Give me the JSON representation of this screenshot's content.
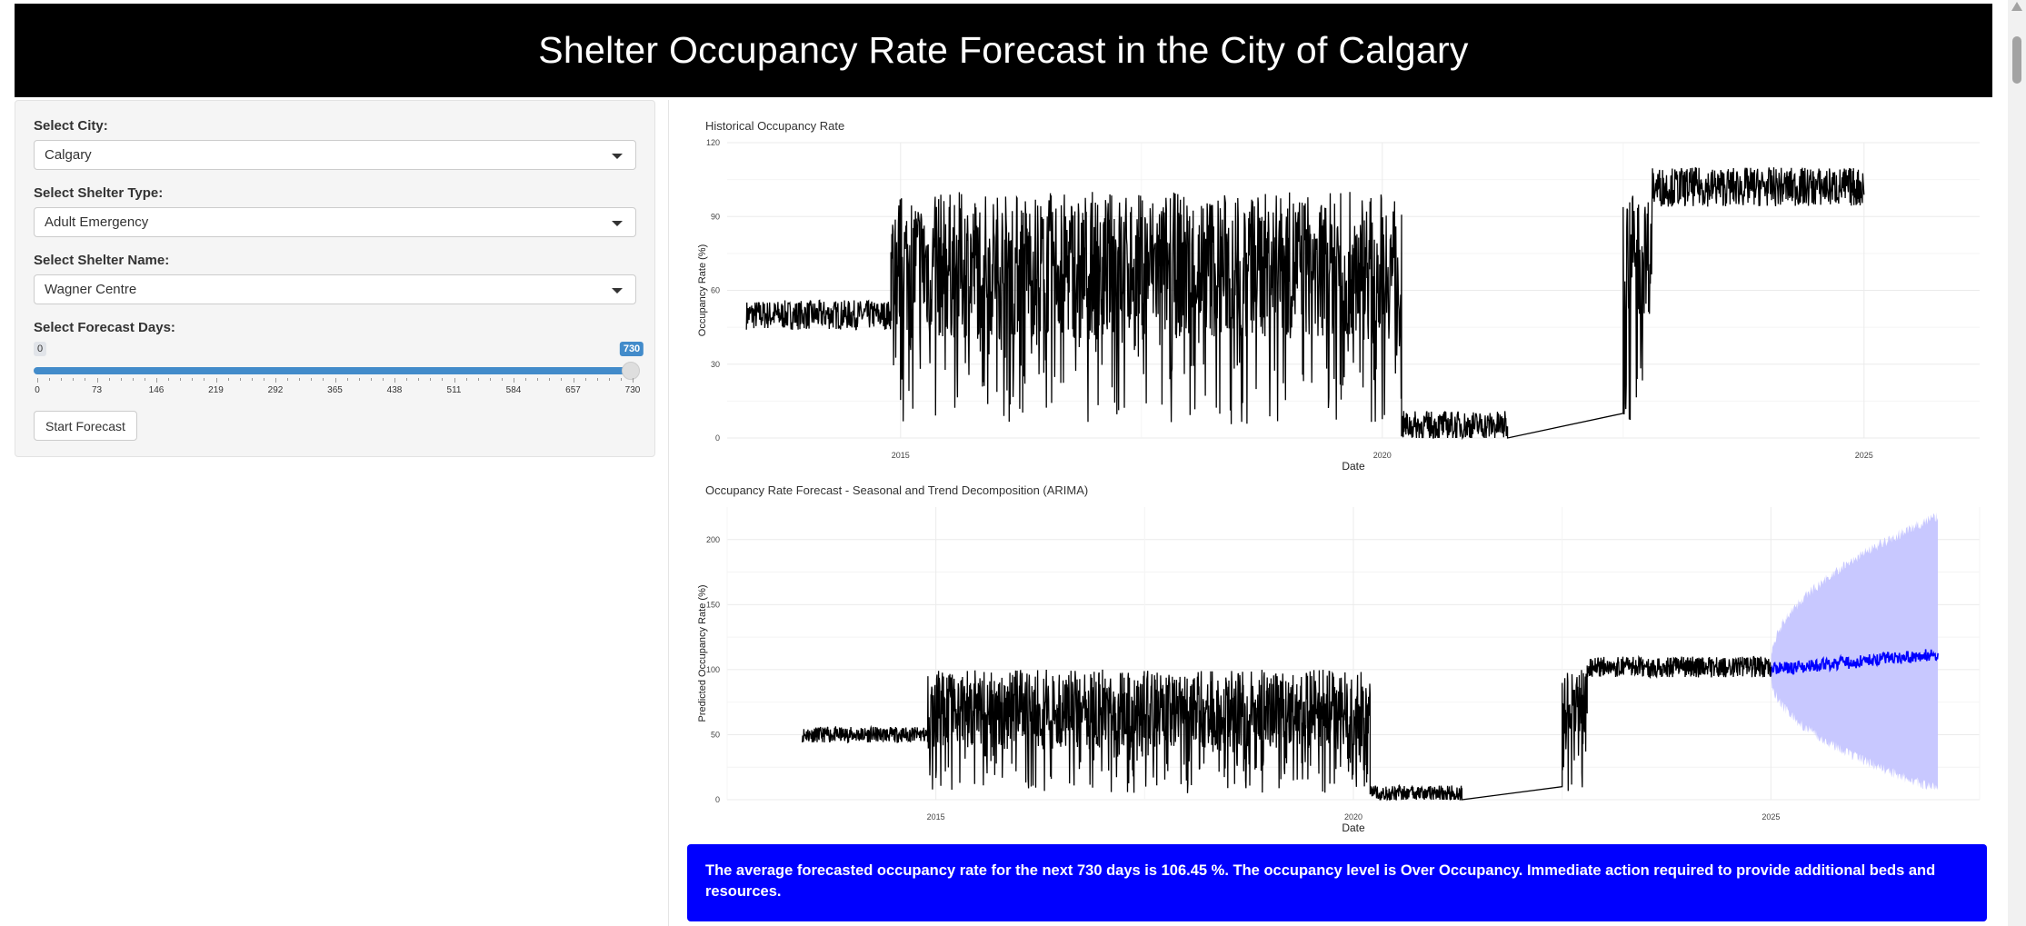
{
  "header": {
    "title": "Shelter Occupancy Rate Forecast in the City of Calgary"
  },
  "sidebar": {
    "city_label": "Select City:",
    "city_value": "Calgary",
    "type_label": "Select Shelter Type:",
    "type_value": "Adult Emergency",
    "name_label": "Select Shelter Name:",
    "name_value": "Wagner Centre",
    "days_label": "Select Forecast Days:",
    "slider": {
      "min": 0,
      "max": 730,
      "value": 730,
      "min_label": "0",
      "max_label": "730",
      "tick_labels": [
        "0",
        "73",
        "146",
        "219",
        "292",
        "365",
        "438",
        "511",
        "584",
        "657",
        "730"
      ]
    },
    "start_button": "Start Forecast"
  },
  "chart_data": [
    {
      "type": "line",
      "title": "Historical Occupancy Rate",
      "xlabel": "Date",
      "ylabel": "Occupancy Rate (%)",
      "xlim": [
        2013.2,
        2026.2
      ],
      "ylim": [
        0,
        120
      ],
      "x_ticks": [
        "2015",
        "2020",
        "2025"
      ],
      "y_ticks": [
        "0",
        "30",
        "60",
        "90",
        "120"
      ],
      "grid": true,
      "series": [
        {
          "color": "#000000",
          "segments": [
            {
              "x0": 2013.4,
              "x1": 2014.9,
              "base": 50,
              "amp": 6
            },
            {
              "x0": 2014.9,
              "x1": 2020.2,
              "base": 70,
              "amp": 30
            },
            {
              "x0": 2020.2,
              "x1": 2021.3,
              "base": 5,
              "amp": 6
            },
            {
              "x0": 2021.3,
              "x1": 2022.5,
              "base": 0,
              "amp": 0
            },
            {
              "x0": 2022.5,
              "x1": 2022.8,
              "base": 75,
              "amp": 25
            },
            {
              "x0": 2022.8,
              "x1": 2025.0,
              "base": 102,
              "amp": 8
            }
          ]
        }
      ]
    },
    {
      "type": "line",
      "title": "Occupancy Rate Forecast - Seasonal and Trend Decomposition (ARIMA)",
      "xlabel": "Date",
      "ylabel": "Predicted Occupancy Rate (%)",
      "xlim": [
        2012.5,
        2027.5
      ],
      "ylim": [
        0,
        225
      ],
      "x_ticks": [
        "2015",
        "2020",
        "2025"
      ],
      "y_ticks": [
        "0",
        "50",
        "100",
        "150",
        "200"
      ],
      "grid": true,
      "series": [
        {
          "color": "#000000",
          "role": "history"
        },
        {
          "color": "#0000ff",
          "role": "forecast",
          "x0": 2025.0,
          "x1": 2027.0,
          "mean_start": 100,
          "mean_end": 112
        }
      ],
      "interval": {
        "color": "#c8c8ff",
        "x0": 2025.0,
        "x1": 2027.0,
        "lower_start": 95,
        "lower_end": 8,
        "upper_start": 105,
        "upper_end": 218
      }
    }
  ],
  "alert": {
    "text": "The average forecasted occupancy rate for the next 730 days is 106.45 %. The occupancy level is Over Occupancy. Immediate action required to provide additional beds and resources."
  }
}
